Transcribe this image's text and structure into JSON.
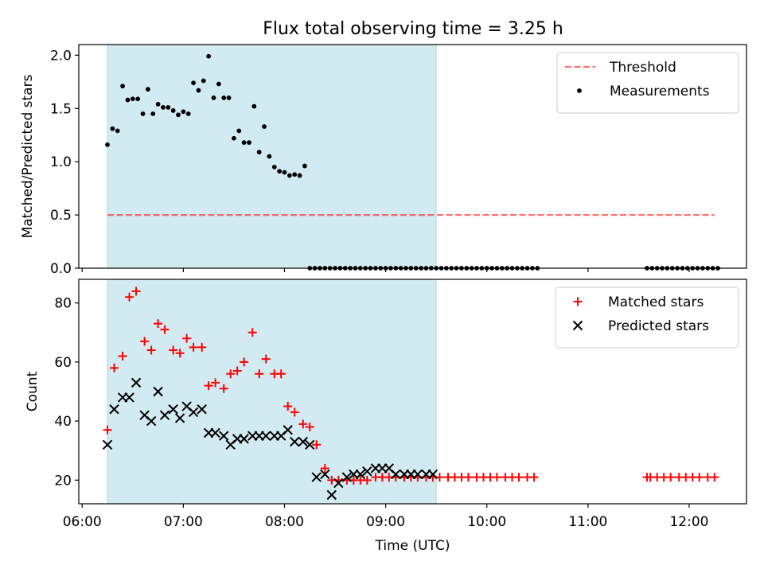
{
  "title": "Flux total observing time = 3.25 h",
  "colors": {
    "shade": "#add8e6",
    "threshold": "#ff0000",
    "measurements": "#000000",
    "matched": "#ff0000",
    "predicted": "#000000"
  },
  "chart_data": [
    {
      "type": "scatter",
      "ylabel": "Matched/Predicted stars",
      "ylim": [
        0.0,
        2.1
      ],
      "yticks": [
        0.0,
        0.5,
        1.0,
        1.5,
        2.0
      ],
      "ytick_labels": [
        "0.0",
        "0.5",
        "1.0",
        "1.5",
        "2.0"
      ],
      "xticks": [
        "06:00",
        "07:00",
        "08:00",
        "09:00",
        "10:00",
        "11:00",
        "12:00"
      ],
      "xlim": [
        "05:58",
        "12:34"
      ],
      "shaded_span": [
        "06:15",
        "09:30"
      ],
      "legend_position": "upper right",
      "threshold": {
        "name": "Threshold",
        "value": 0.5,
        "x_range": [
          "06:15",
          "12:15"
        ],
        "style": "dashed"
      },
      "series": [
        {
          "name": "Measurements",
          "marker": "dot",
          "x": [
            "06:15",
            "06:18",
            "06:21",
            "06:24",
            "06:27",
            "06:30",
            "06:33",
            "06:36",
            "06:39",
            "06:42",
            "06:45",
            "06:48",
            "06:51",
            "06:54",
            "06:57",
            "07:00",
            "07:03",
            "07:06",
            "07:09",
            "07:12",
            "07:15",
            "07:18",
            "07:21",
            "07:24",
            "07:27",
            "07:30",
            "07:33",
            "07:36",
            "07:39",
            "07:42",
            "07:45",
            "07:48",
            "07:51",
            "07:54",
            "07:57",
            "08:00",
            "08:03",
            "08:06",
            "08:09",
            "08:12",
            "08:15",
            "08:18",
            "08:21",
            "08:24",
            "08:27",
            "08:30",
            "08:33",
            "08:36",
            "08:39",
            "08:42",
            "08:45",
            "08:48",
            "08:51",
            "08:54",
            "08:57",
            "09:00",
            "09:03",
            "09:06",
            "09:09",
            "09:12",
            "09:15",
            "09:18",
            "09:21",
            "09:24",
            "09:27",
            "09:30",
            "09:33",
            "09:36",
            "09:39",
            "09:42",
            "09:45",
            "09:48",
            "09:51",
            "09:54",
            "09:57",
            "10:00",
            "10:03",
            "10:06",
            "10:09",
            "10:12",
            "10:15",
            "10:18",
            "10:21",
            "10:24",
            "10:27",
            "10:30",
            "11:35",
            "11:38",
            "11:41",
            "11:44",
            "11:47",
            "11:50",
            "11:53",
            "11:56",
            "11:59",
            "12:02",
            "12:05",
            "12:08",
            "12:11",
            "12:14",
            "12:17"
          ],
          "y": [
            1.16,
            1.31,
            1.29,
            1.71,
            1.58,
            1.59,
            1.59,
            1.45,
            1.68,
            1.45,
            1.54,
            1.51,
            1.51,
            1.48,
            1.44,
            1.47,
            1.45,
            1.74,
            1.67,
            1.76,
            1.99,
            1.6,
            1.73,
            1.6,
            1.6,
            1.22,
            1.29,
            1.18,
            1.18,
            1.52,
            1.09,
            1.33,
            1.05,
            0.95,
            0.91,
            0.9,
            0.87,
            0.88,
            0.87,
            0.96,
            0.0,
            0.0,
            0.0,
            0.0,
            0.0,
            0.0,
            0.0,
            0.0,
            0.0,
            0.0,
            0.0,
            0.0,
            0.0,
            0.0,
            0.0,
            0.0,
            0.0,
            0.0,
            0.0,
            0.0,
            0.0,
            0.0,
            0.0,
            0.0,
            0.0,
            0.0,
            0.0,
            0.0,
            0.0,
            0.0,
            0.0,
            0.0,
            0.0,
            0.0,
            0.0,
            0.0,
            0.0,
            0.0,
            0.0,
            0.0,
            0.0,
            0.0,
            0.0,
            0.0,
            0.0,
            0.0,
            0.0,
            0.0,
            0.0,
            0.0,
            0.0,
            0.0,
            0.0,
            0.0,
            0.0,
            0.0,
            0.0,
            0.0,
            0.0,
            0.0,
            0.0
          ]
        }
      ]
    },
    {
      "type": "scatter",
      "ylabel": "Count",
      "xlabel": "Time (UTC)",
      "ylim": [
        12,
        88
      ],
      "yticks": [
        20,
        40,
        60,
        80
      ],
      "xticks": [
        "06:00",
        "07:00",
        "08:00",
        "09:00",
        "10:00",
        "11:00",
        "12:00"
      ],
      "xlim": [
        "05:58",
        "12:34"
      ],
      "shaded_span": [
        "06:15",
        "09:30"
      ],
      "legend_position": "upper right",
      "series": [
        {
          "name": "Matched stars",
          "marker": "plus",
          "x": [
            "06:15",
            "06:19",
            "06:24",
            "06:28",
            "06:32",
            "06:37",
            "06:41",
            "06:45",
            "06:49",
            "06:54",
            "06:58",
            "07:02",
            "07:06",
            "07:11",
            "07:15",
            "07:19",
            "07:24",
            "07:28",
            "07:32",
            "07:36",
            "07:41",
            "07:45",
            "07:49",
            "07:54",
            "07:58",
            "08:02",
            "08:06",
            "08:11",
            "08:15",
            "08:19",
            "08:24",
            "08:28",
            "08:32",
            "08:37",
            "08:41",
            "08:45",
            "08:49",
            "08:54",
            "08:58",
            "09:02",
            "09:06",
            "09:11",
            "09:15",
            "09:19",
            "09:24",
            "09:28",
            "09:32",
            "09:37",
            "09:41",
            "09:45",
            "09:49",
            "09:54",
            "09:58",
            "10:02",
            "10:06",
            "10:11",
            "10:15",
            "10:19",
            "10:24",
            "10:28",
            "11:35",
            "11:37",
            "11:41",
            "11:45",
            "11:49",
            "11:54",
            "11:58",
            "12:02",
            "12:06",
            "12:11",
            "12:15"
          ],
          "y": [
            37,
            58,
            62,
            82,
            84,
            67,
            64,
            73,
            71,
            64,
            63,
            68,
            65,
            65,
            52,
            53,
            51,
            56,
            57,
            60,
            70,
            56,
            61,
            56,
            56,
            45,
            43,
            39,
            38,
            32,
            24,
            20,
            20,
            20,
            20,
            20,
            20,
            21,
            21,
            21,
            21,
            21,
            21,
            21,
            21,
            21,
            21,
            21,
            21,
            21,
            21,
            21,
            21,
            21,
            21,
            21,
            21,
            21,
            21,
            21,
            21,
            21,
            21,
            21,
            21,
            21,
            21,
            21,
            21,
            21,
            21
          ]
        },
        {
          "name": "Predicted stars",
          "marker": "x",
          "x": [
            "06:15",
            "06:19",
            "06:24",
            "06:28",
            "06:32",
            "06:37",
            "06:41",
            "06:45",
            "06:49",
            "06:54",
            "06:58",
            "07:02",
            "07:06",
            "07:11",
            "07:15",
            "07:19",
            "07:24",
            "07:28",
            "07:32",
            "07:36",
            "07:41",
            "07:45",
            "07:49",
            "07:54",
            "07:58",
            "08:02",
            "08:06",
            "08:11",
            "08:15",
            "08:19",
            "08:24",
            "08:28",
            "08:32",
            "08:37",
            "08:41",
            "08:45",
            "08:49",
            "08:54",
            "08:58",
            "09:02",
            "09:06",
            "09:11",
            "09:15",
            "09:19",
            "09:24",
            "09:28"
          ],
          "y": [
            32,
            44,
            48,
            48,
            53,
            42,
            40,
            50,
            42,
            44,
            41,
            45,
            43,
            44,
            36,
            36,
            35,
            32,
            34,
            34,
            35,
            35,
            35,
            35,
            35,
            37,
            33,
            33,
            32,
            21,
            22,
            15,
            19,
            21,
            22,
            22,
            23,
            24,
            24,
            24,
            22,
            22,
            22,
            22,
            22,
            22
          ]
        }
      ]
    }
  ]
}
